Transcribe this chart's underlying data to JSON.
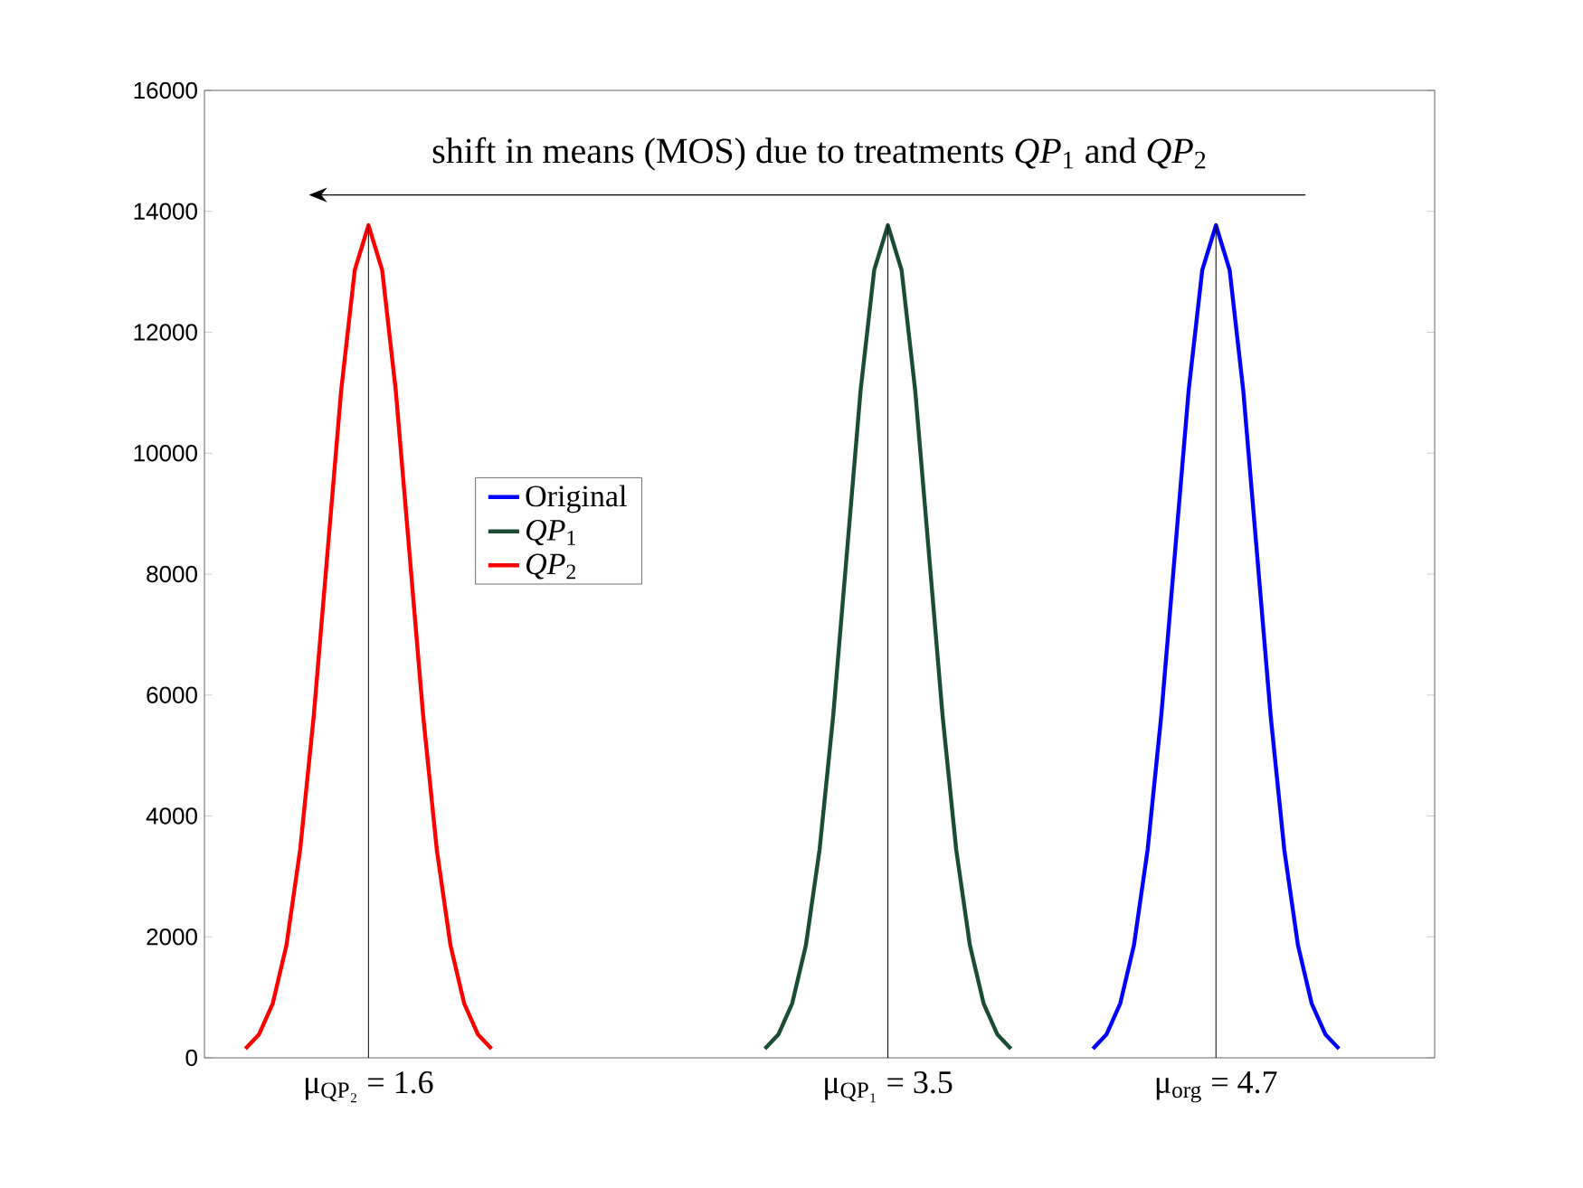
{
  "chart_data": {
    "type": "line",
    "xlim": [
      1,
      5.5
    ],
    "ylim": [
      0,
      16000
    ],
    "xticks": [
      {
        "value": 1.6,
        "label": "μ$_{QP₂}$ = 1.6"
      },
      {
        "value": 3.5,
        "label": "μ$_{QP₁}$ = 3.5"
      },
      {
        "value": 4.7,
        "label": "μ$_{org}$ = 4.7"
      }
    ],
    "yticks": [
      0,
      2000,
      4000,
      6000,
      8000,
      10000,
      12000,
      14000,
      16000
    ],
    "grid": false,
    "legend": "left",
    "marker": "none",
    "line_style": "solid",
    "series": [
      {
        "name": "Original",
        "color": "#0000ff",
        "x": [
          4.25,
          4.3,
          4.35,
          4.4,
          4.45,
          4.5,
          4.55,
          4.6,
          4.65,
          4.7,
          4.75,
          4.8,
          4.85,
          4.9,
          4.95,
          5.0,
          5.05,
          5.1,
          5.15
        ],
        "values": [
          150,
          390,
          900,
          1860,
          3440,
          5660,
          8350,
          11030,
          13030,
          13770,
          13030,
          11030,
          8350,
          5660,
          3440,
          1860,
          900,
          390,
          150
        ]
      },
      {
        "name": "*QP*$_{1}$",
        "color": "#1a4d33",
        "x": [
          3.05,
          3.1,
          3.15,
          3.2,
          3.25,
          3.3,
          3.35,
          3.4,
          3.45,
          3.5,
          3.55,
          3.6,
          3.65,
          3.7,
          3.75,
          3.8,
          3.85,
          3.9,
          3.95
        ],
        "values": [
          150,
          390,
          900,
          1860,
          3440,
          5660,
          8350,
          11030,
          13030,
          13770,
          13030,
          11030,
          8350,
          5660,
          3440,
          1860,
          900,
          390,
          150
        ]
      },
      {
        "name": "*QP*$_{2}$",
        "color": "#ff0000",
        "x": [
          1.15,
          1.2,
          1.25,
          1.3,
          1.35,
          1.4,
          1.45,
          1.5,
          1.55,
          1.6,
          1.65,
          1.7,
          1.75,
          1.8,
          1.85,
          1.9,
          1.95,
          2.0,
          2.05
        ],
        "values": [
          150,
          390,
          900,
          1860,
          3440,
          5660,
          8350,
          11030,
          13030,
          13770,
          13030,
          11030,
          8350,
          5660,
          3440,
          1860,
          900,
          390,
          150
        ]
      }
    ],
    "ref_lines": [
      {
        "axis": "x",
        "value": 1.6,
        "color": "#000000"
      },
      {
        "axis": "x",
        "value": 3.5,
        "color": "#000000"
      },
      {
        "axis": "x",
        "value": 4.7,
        "color": "#000000"
      }
    ],
    "annotations": [
      "shift in means (MOS) due to treatments *QP*$_{1}$ and *QP*$_{2}$"
    ]
  }
}
